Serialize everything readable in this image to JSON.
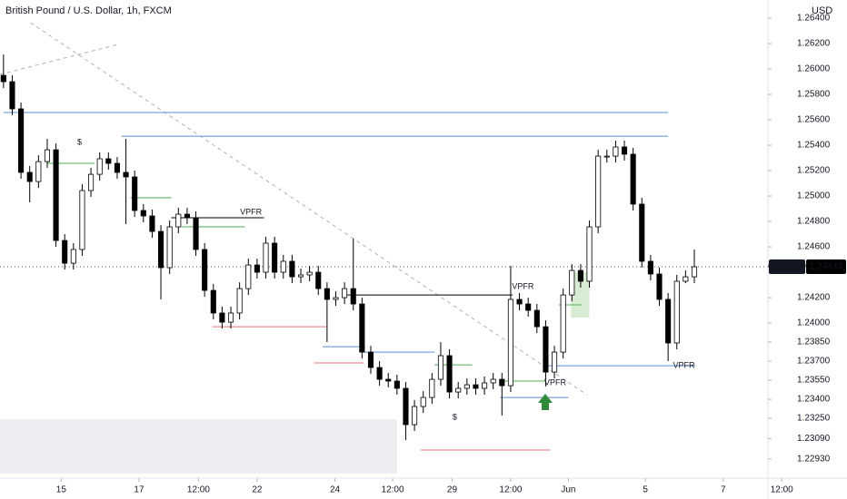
{
  "chart_data": {
    "type": "candlestick",
    "title": "British Pound / U.S. Dollar, 1h, FXCM",
    "currency": "USD",
    "symbol": "GBPUSD",
    "last_price": 1.24443,
    "up_color": "#ffffff",
    "down_color": "#000000",
    "grid": false,
    "open": [
      1.2595,
      1.259,
      1.25686,
      1.25186,
      1.25114,
      1.25271,
      1.25364,
      1.2465,
      1.24471,
      1.24579,
      1.25043,
      1.25171,
      1.25293,
      1.25257,
      1.25186,
      1.2515,
      1.24886,
      1.24843,
      1.24721,
      1.24436,
      1.24757,
      1.24857,
      1.24829,
      1.24579,
      1.24257,
      1.24079,
      1.24007,
      1.24079,
      1.24271,
      1.24457,
      1.244,
      1.24629,
      1.244,
      1.24486,
      1.24364,
      1.24379,
      1.244,
      1.24271,
      1.24186,
      1.242,
      1.24271,
      1.2415,
      1.23771,
      1.2365,
      1.23557,
      1.23543,
      1.23486,
      1.232,
      1.23343,
      1.23414,
      1.23557,
      1.23743,
      1.23457,
      1.23486,
      1.23514,
      1.23486,
      1.23529,
      1.23557,
      1.23507,
      1.24186,
      1.2415,
      1.241,
      1.23971,
      1.23614,
      1.23771,
      1.24221,
      1.24414,
      1.24329,
      1.24757,
      1.25314,
      1.25314,
      1.25386,
      1.25329,
      1.24936,
      1.24486,
      1.24386,
      1.24186,
      1.23843,
      1.24329,
      1.24364
    ],
    "high": [
      1.26114,
      1.2595,
      1.25736,
      1.25236,
      1.25321,
      1.2545,
      1.25414,
      1.247,
      1.24629,
      1.25093,
      1.25221,
      1.25343,
      1.25343,
      1.25307,
      1.2545,
      1.252,
      1.24936,
      1.24893,
      1.24771,
      1.24807,
      1.24907,
      1.24907,
      1.24879,
      1.24629,
      1.24307,
      1.24129,
      1.24129,
      1.24321,
      1.24507,
      1.24507,
      1.24679,
      1.24679,
      1.24536,
      1.24536,
      1.24429,
      1.2445,
      1.2445,
      1.24321,
      1.2425,
      1.24321,
      1.24664,
      1.242,
      1.23821,
      1.237,
      1.23607,
      1.23593,
      1.23536,
      1.23393,
      1.23464,
      1.23607,
      1.2385,
      1.23793,
      1.23536,
      1.23564,
      1.23564,
      1.23579,
      1.23607,
      1.23607,
      1.2445,
      1.24236,
      1.242,
      1.2415,
      1.24021,
      1.23821,
      1.24271,
      1.24464,
      1.24464,
      1.24807,
      1.25364,
      1.25364,
      1.25436,
      1.25436,
      1.25379,
      1.24986,
      1.24536,
      1.24436,
      1.24236,
      1.24379,
      1.24414,
      1.24579
    ],
    "low": [
      1.2585,
      1.25636,
      1.25136,
      1.2495,
      1.25064,
      1.25221,
      1.246,
      1.24421,
      1.24421,
      1.24529,
      1.24993,
      1.25121,
      1.25207,
      1.25136,
      1.24779,
      1.24836,
      1.24793,
      1.24671,
      1.24186,
      1.24386,
      1.24707,
      1.24779,
      1.24529,
      1.24207,
      1.24029,
      1.23957,
      1.23957,
      1.24029,
      1.24221,
      1.2435,
      1.2435,
      1.2435,
      1.2435,
      1.24314,
      1.24314,
      1.24329,
      1.24221,
      1.2385,
      1.24136,
      1.2415,
      1.241,
      1.23721,
      1.236,
      1.23507,
      1.23493,
      1.23436,
      1.23079,
      1.2315,
      1.23293,
      1.23364,
      1.23507,
      1.23407,
      1.23407,
      1.23436,
      1.23436,
      1.23436,
      1.23479,
      1.23271,
      1.23457,
      1.241,
      1.2405,
      1.23921,
      1.235,
      1.23564,
      1.23721,
      1.24171,
      1.24279,
      1.24279,
      1.24707,
      1.25264,
      1.25264,
      1.25279,
      1.24886,
      1.24436,
      1.24336,
      1.24136,
      1.237,
      1.23793,
      1.24314,
      1.24314
    ],
    "close": [
      1.259,
      1.25686,
      1.25186,
      1.25114,
      1.25271,
      1.25364,
      1.2465,
      1.24471,
      1.24579,
      1.25043,
      1.25171,
      1.25293,
      1.25257,
      1.25186,
      1.2515,
      1.24886,
      1.24843,
      1.24721,
      1.24436,
      1.24757,
      1.24857,
      1.24829,
      1.24579,
      1.24257,
      1.24079,
      1.24007,
      1.24079,
      1.24271,
      1.24457,
      1.244,
      1.24629,
      1.244,
      1.24486,
      1.24364,
      1.24379,
      1.244,
      1.24271,
      1.24186,
      1.242,
      1.24271,
      1.2415,
      1.23771,
      1.2365,
      1.23557,
      1.23543,
      1.23486,
      1.232,
      1.23343,
      1.23414,
      1.23557,
      1.23743,
      1.23457,
      1.23486,
      1.23514,
      1.23486,
      1.23529,
      1.23557,
      1.23507,
      1.24186,
      1.2415,
      1.241,
      1.23971,
      1.23614,
      1.23771,
      1.24221,
      1.24414,
      1.24329,
      1.24757,
      1.25314,
      1.25314,
      1.25386,
      1.25329,
      1.24936,
      1.24486,
      1.24386,
      1.24186,
      1.23843,
      1.24329,
      1.24364,
      1.24443
    ],
    "xlim": [
      -0.4,
      89.6
    ],
    "ylim": [
      1.22779,
      1.26543
    ],
    "xticks": [
      {
        "value": 6.6,
        "label": "15"
      },
      {
        "value": 15.5,
        "label": "17"
      },
      {
        "value": 22.3,
        "label": "12:00"
      },
      {
        "value": 29.0,
        "label": "22"
      },
      {
        "value": 37.9,
        "label": "24"
      },
      {
        "value": 44.5,
        "label": "12:00"
      },
      {
        "value": 51.3,
        "label": "29"
      },
      {
        "value": 58.0,
        "label": "12:00"
      },
      {
        "value": 64.6,
        "label": "Jun"
      },
      {
        "value": 73.4,
        "label": "5"
      },
      {
        "value": 82.3,
        "label": "7"
      },
      {
        "value": 89.0,
        "label": "12:00"
      }
    ],
    "yticks": [
      {
        "value": 1.264,
        "label": "1.26400"
      },
      {
        "value": 1.262,
        "label": "1.26200"
      },
      {
        "value": 1.26,
        "label": "1.26000"
      },
      {
        "value": 1.258,
        "label": "1.25800"
      },
      {
        "value": 1.256,
        "label": "1.25600"
      },
      {
        "value": 1.254,
        "label": "1.25400"
      },
      {
        "value": 1.252,
        "label": "1.25200"
      },
      {
        "value": 1.25,
        "label": "1.25000"
      },
      {
        "value": 1.248,
        "label": "1.24800"
      },
      {
        "value": 1.246,
        "label": "1.24600"
      },
      {
        "value": 1.242,
        "label": "1.24200"
      },
      {
        "value": 1.24,
        "label": "1.24000"
      },
      {
        "value": 1.2385,
        "label": "1.23850"
      },
      {
        "value": 1.237,
        "label": "1.23700"
      },
      {
        "value": 1.2355,
        "label": "1.23550"
      },
      {
        "value": 1.234,
        "label": "1.23400"
      },
      {
        "value": 1.2325,
        "label": "1.23250"
      },
      {
        "value": 1.2309,
        "label": "1.23090"
      },
      {
        "value": 1.2293,
        "label": "1.22930"
      }
    ],
    "levels": [
      {
        "price": 1.25657,
        "x": [
          0,
          76
        ],
        "color": "#5b8fd9"
      },
      {
        "price": 1.25471,
        "x": [
          13.5,
          76
        ],
        "color": "#5b8fd9"
      },
      {
        "price": 1.25257,
        "x": [
          5,
          10.4
        ],
        "color": "#4caf50"
      },
      {
        "price": 1.24986,
        "x": [
          14.5,
          19.2
        ],
        "color": "#4caf50"
      },
      {
        "price": 1.24829,
        "x": [
          19.2,
          29.8
        ],
        "color": "#000000"
      },
      {
        "price": 1.24757,
        "x": [
          20.4,
          27.6
        ],
        "color": "#4caf50"
      },
      {
        "price": 1.23971,
        "x": [
          23.9,
          36.9
        ],
        "color": "#e57373"
      },
      {
        "price": 1.24221,
        "x": [
          39,
          58.2
        ],
        "color": "#000000"
      },
      {
        "price": 1.23814,
        "x": [
          36.5,
          41.2
        ],
        "color": "#5b8fd9"
      },
      {
        "price": 1.23771,
        "x": [
          41.2,
          49.3
        ],
        "color": "#5b8fd9"
      },
      {
        "price": 1.23686,
        "x": [
          35.5,
          41.2
        ],
        "color": "#e57373"
      },
      {
        "price": 1.23671,
        "x": [
          49.3,
          53.6
        ],
        "color": "#4caf50"
      },
      {
        "price": 1.23,
        "x": [
          47.7,
          62.5
        ],
        "color": "#e57373"
      },
      {
        "price": 1.23543,
        "x": [
          56.8,
          62
        ],
        "color": "#4caf50"
      },
      {
        "price": 1.23414,
        "x": [
          56.8,
          64.6
        ],
        "color": "#5b8fd9"
      },
      {
        "price": 1.23664,
        "x": [
          62,
          79.1
        ],
        "color": "#5b8fd9"
      },
      {
        "price": 1.24143,
        "x": [
          63.5,
          66.1
        ],
        "color": "#4caf50"
      }
    ],
    "zones": [
      {
        "price": [
          1.23243,
          1.22814
        ],
        "x": [
          -0.4,
          45
        ],
        "color": "#eceef1"
      },
      {
        "price": [
          1.244,
          1.24043
        ],
        "x": [
          64.9,
          67
        ],
        "color": "#d7ecd3"
      }
    ],
    "trendlines": [
      {
        "points": [
          [
            3.1,
            1.26364
          ],
          [
            66.7,
            1.23436
          ]
        ],
        "color": "#b0b0b0"
      },
      {
        "points": [
          [
            -0.4,
            1.25957
          ],
          [
            13.1,
            1.26193
          ]
        ],
        "color": "#b0b0b0"
      }
    ],
    "annotations": [
      {
        "text": "VPFR",
        "x": 28.3,
        "price": 1.24871,
        "color": "#000000"
      },
      {
        "text": "VPFR",
        "x": 59.4,
        "price": 1.24286,
        "color": "#000000"
      },
      {
        "text": "VPFR",
        "x": 63.1,
        "price": 1.23529,
        "color": "#3a78c9"
      },
      {
        "text": "VPFR",
        "x": 77.8,
        "price": 1.23664,
        "color": "#3a78c9"
      },
      {
        "text": "$",
        "x": 8.7,
        "price": 1.25421,
        "color": "#4caf50"
      },
      {
        "text": "$",
        "x": 51.6,
        "price": 1.23257,
        "color": "#4caf50"
      }
    ]
  }
}
